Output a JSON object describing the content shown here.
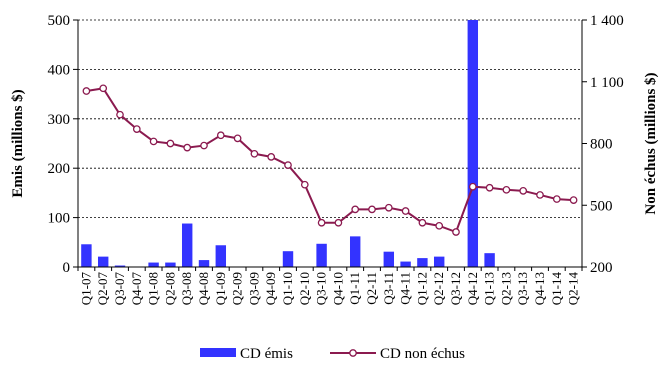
{
  "chart_data": {
    "type": "bar",
    "categories": [
      "Q1-07",
      "Q2-07",
      "Q3-07",
      "Q4-07",
      "Q1-08",
      "Q2-08",
      "Q3-08",
      "Q4-08",
      "Q1-09",
      "Q2-09",
      "Q3-09",
      "Q4-09",
      "Q1-10",
      "Q2-10",
      "Q3-10",
      "Q4-10",
      "Q1-11",
      "Q2-11",
      "Q3-11",
      "Q4-11",
      "Q1-12",
      "Q2-12",
      "Q3-12",
      "Q4-12",
      "Q1-13",
      "Q2-13",
      "Q3-13",
      "Q4-13",
      "Q1-14",
      "Q2-14"
    ],
    "series": [
      {
        "name": "CD émis",
        "type": "bar",
        "axis": "left",
        "color": "#3333ff",
        "values": [
          46,
          21,
          3,
          0,
          9,
          9,
          88,
          14,
          44,
          0,
          0,
          0,
          32,
          0,
          47,
          0,
          62,
          0,
          31,
          11,
          18,
          21,
          0,
          500,
          28,
          0,
          0,
          0,
          0,
          0
        ]
      },
      {
        "name": "CD non échus",
        "type": "line",
        "axis": "right",
        "color": "#8b1a4f",
        "marker_fill": "#ffffff",
        "values": [
          1055,
          1068,
          940,
          870,
          810,
          800,
          780,
          790,
          840,
          825,
          750,
          735,
          695,
          600,
          415,
          415,
          480,
          480,
          488,
          472,
          415,
          400,
          370,
          590,
          585,
          575,
          570,
          550,
          530,
          525
        ]
      }
    ],
    "ylabel": "Emis  (millions $)",
    "ylabel_right": "Non échus  (millions $)",
    "ylim": [
      0,
      500
    ],
    "yticks": [
      0,
      100,
      200,
      300,
      400,
      500
    ],
    "ylim_right": [
      200,
      1400
    ],
    "yticks_right": [
      "200",
      "500",
      "800",
      "1 100",
      "1 400"
    ],
    "yticks_right_values": [
      200,
      500,
      800,
      1100,
      1400
    ],
    "grid": true,
    "legend_placement": "bottom"
  }
}
